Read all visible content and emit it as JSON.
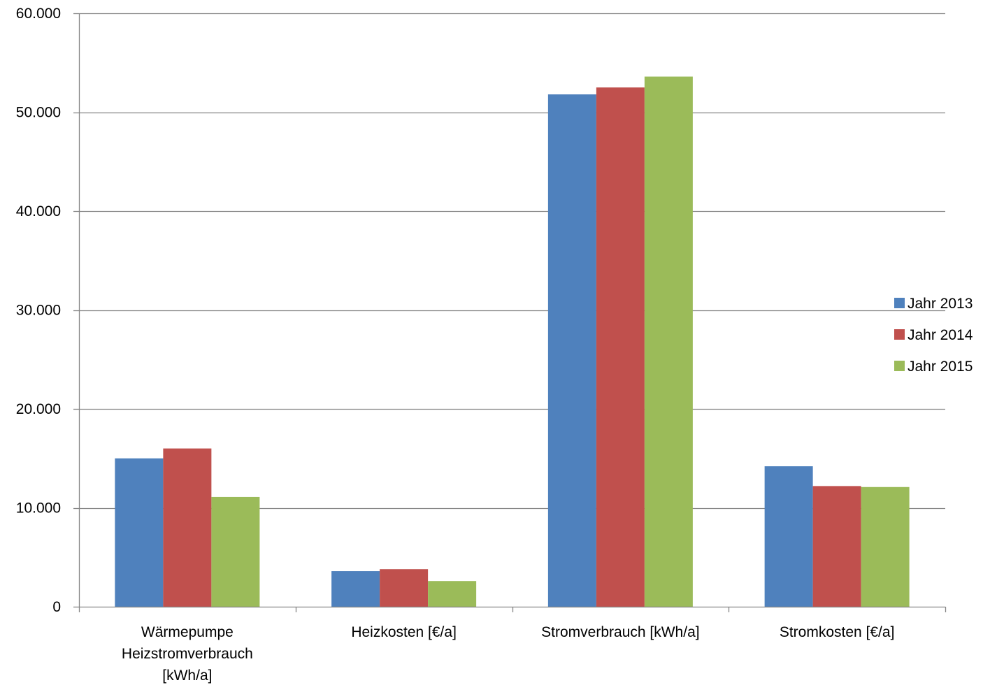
{
  "chart_data": {
    "type": "bar",
    "title": "",
    "xlabel": "",
    "ylabel": "",
    "categories": [
      [
        "Wärmepumpe",
        "Heizstromverbrauch",
        "[kWh/a]"
      ],
      [
        "Heizkosten [€/a]"
      ],
      [
        "Stromverbrauch [kWh/a]"
      ],
      [
        "Stromkosten [€/a]"
      ]
    ],
    "series": [
      {
        "name": "Jahr 2013",
        "color": "#4F81BD",
        "values": [
          15000,
          3600,
          51800,
          14200
        ]
      },
      {
        "name": "Jahr 2014",
        "color": "#C0504D",
        "values": [
          16000,
          3800,
          52500,
          12200
        ]
      },
      {
        "name": "Jahr 2015",
        "color": "#9BBB59",
        "values": [
          11100,
          2600,
          53600,
          12100
        ]
      }
    ],
    "ylim": [
      0,
      60000
    ],
    "yticks": [
      0,
      10000,
      20000,
      30000,
      40000,
      50000,
      60000
    ],
    "ytick_labels": [
      "0",
      "10.000",
      "20.000",
      "30.000",
      "40.000",
      "50.000",
      "60.000"
    ],
    "grid": true,
    "legend": "right"
  }
}
